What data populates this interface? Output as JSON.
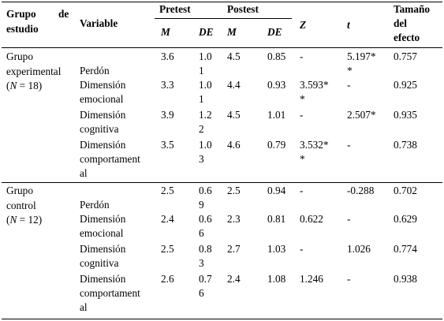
{
  "header": {
    "grupo_line1": "Grupo",
    "grupo_de": "de",
    "grupo_line2": "estudio",
    "variable": "Variable",
    "pretest": "Pretest",
    "postest": "Postest",
    "z": "Z",
    "t": "t",
    "efecto_line1": "Tamaño",
    "efecto_line2": "del",
    "efecto_line3": "efecto",
    "m": "M",
    "de": "DE"
  },
  "groups": [
    {
      "name_line1": "Grupo",
      "name_line2": "experimental",
      "n_open": "(",
      "n_letter": "N",
      "n_rest": " = 18)",
      "rows": [
        {
          "var": [
            "Perdón"
          ],
          "pre_m": "3.6",
          "pre_de": [
            "1.0",
            "1"
          ],
          "post_m": "4.5",
          "post_de": "0.85",
          "z": [
            "-"
          ],
          "t": [
            "5.197*",
            "*"
          ],
          "effect": "0.757"
        },
        {
          "var": [
            "Dimensión",
            "emocional"
          ],
          "pre_m": "3.3",
          "pre_de": [
            "1.0",
            "1"
          ],
          "post_m": "4.4",
          "post_de": "0.93",
          "z": [
            "3.593*",
            "*"
          ],
          "t": [
            "-"
          ],
          "effect": "0.925"
        },
        {
          "var": [
            "Dimensión",
            "cognitiva"
          ],
          "pre_m": "3.9",
          "pre_de": [
            "1.2",
            "2"
          ],
          "post_m": "4.5",
          "post_de": "1.01",
          "z": [
            "-"
          ],
          "t": [
            "2.507*"
          ],
          "effect": "0.935"
        },
        {
          "var": [
            "Dimensión",
            "comportament",
            "al"
          ],
          "pre_m": "3.5",
          "pre_de": [
            "1.0",
            "3"
          ],
          "post_m": "4.6",
          "post_de": "0.79",
          "z": [
            "3.532*",
            "*"
          ],
          "t": [
            "-"
          ],
          "effect": "0.738"
        }
      ]
    },
    {
      "name_line1": "Grupo",
      "name_line2": "control",
      "n_open": "(",
      "n_letter": "N",
      "n_rest": " = 12)",
      "rows": [
        {
          "var": [
            "Perdón"
          ],
          "pre_m": "2.5",
          "pre_de": [
            "0.6",
            "9"
          ],
          "post_m": "2.5",
          "post_de": "0.94",
          "z": [
            "-"
          ],
          "t": [
            "-0.288"
          ],
          "effect": "0.702"
        },
        {
          "var": [
            "Dimensión",
            "emocional"
          ],
          "pre_m": "2.4",
          "pre_de": [
            "0.6",
            "6"
          ],
          "post_m": "2.3",
          "post_de": "0.81",
          "z": [
            "0.622"
          ],
          "t": [
            "-"
          ],
          "effect": "0.629"
        },
        {
          "var": [
            "Dimensión",
            "cognitiva"
          ],
          "pre_m": "2.5",
          "pre_de": [
            "0.8",
            "3"
          ],
          "post_m": "2.7",
          "post_de": "1.03",
          "z": [
            "-"
          ],
          "t": [
            "1.026"
          ],
          "effect": "0.774"
        },
        {
          "var": [
            "Dimensión",
            "comportament",
            "al"
          ],
          "pre_m": "2.6",
          "pre_de": [
            "0.7",
            "6"
          ],
          "post_m": "2.4",
          "post_de": "1.08",
          "z": [
            "1.246"
          ],
          "t": [
            "-"
          ],
          "effect": "0.938"
        }
      ]
    }
  ]
}
